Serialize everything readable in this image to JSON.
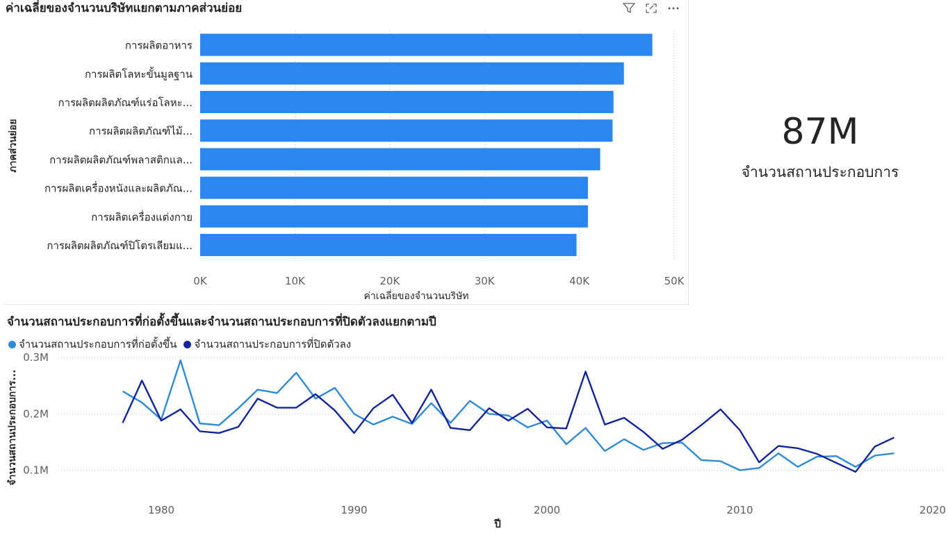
{
  "bar_visual": {
    "title": "ค่าเฉลี่ยของจำนวนบริษัทแยกตามภาคส่วนย่อย",
    "icons": [
      "filter-icon",
      "focus-mode-icon",
      "more-options-icon"
    ]
  },
  "card": {
    "value": "87M",
    "label": "จำนวนสถานประกอบการ"
  },
  "line_visual": {
    "title": "จำนวนสถานประกอบการที่ก่อตั้งขึ้นและจำนวนสถานประกอบการที่ปิดตัวลงแยกตามปี"
  },
  "colors": {
    "bar": "#2a87f0",
    "series_opened": "#2e8ad8",
    "series_closed": "#12239e",
    "grid": "#c8c6c4",
    "axis_text": "#605e5c"
  },
  "chart_data": [
    {
      "type": "bar",
      "orientation": "horizontal",
      "title": "ค่าเฉลี่ยของจำนวนบริษัทแยกตามภาคส่วนย่อย",
      "xlabel": "ค่าเฉลี่ยของจำนวนบริษัท",
      "ylabel": "ภาคส่วนย่อย",
      "categories": [
        "การผลิตอาหาร",
        "การผลิตโลหะขั้นมูลฐาน",
        "การผลิตผลิตภัณฑ์แร่อโลหะ...",
        "การผลิตผลิตภัณฑ์ไม้...",
        "การผลิตผลิตภัณฑ์พลาสติกแล...",
        "การผลิตเครื่องหนังและผลิตภัณ...",
        "การผลิตเครื่องแต่งกาย",
        "การผลิตผลิตภัณฑ์ปิโตรเลียมแ..."
      ],
      "values": [
        47700,
        44700,
        43600,
        43500,
        42200,
        40900,
        40900,
        39700
      ],
      "xlim": [
        0,
        50000
      ],
      "xticks": [
        "0K",
        "10K",
        "20K",
        "30K",
        "40K",
        "50K"
      ],
      "grid": true
    },
    {
      "type": "line",
      "title": "จำนวนสถานประกอบการที่ก่อตั้งขึ้นและจำนวนสถานประกอบการที่ปิดตัวลงแยกตามปี",
      "xlabel": "ปี",
      "ylabel": "จำนวนสถานประกอบการ...",
      "x": [
        1978,
        1979,
        1980,
        1981,
        1982,
        1983,
        1984,
        1985,
        1986,
        1987,
        1988,
        1989,
        1990,
        1991,
        1992,
        1993,
        1994,
        1995,
        1996,
        1997,
        1998,
        1999,
        2000,
        2001,
        2002,
        2003,
        2004,
        2005,
        2006,
        2007,
        2008,
        2009,
        2010,
        2011,
        2012,
        2013,
        2014,
        2015,
        2016,
        2017,
        2018
      ],
      "series": [
        {
          "name": "จำนวนสถานประกอบการที่ก่อตั้งขึ้น",
          "values": [
            0.24,
            0.22,
            0.19,
            0.295,
            0.183,
            0.18,
            0.21,
            0.243,
            0.237,
            0.273,
            0.227,
            0.246,
            0.2,
            0.181,
            0.195,
            0.182,
            0.219,
            0.184,
            0.223,
            0.2,
            0.197,
            0.176,
            0.188,
            0.146,
            0.175,
            0.134,
            0.155,
            0.136,
            0.148,
            0.149,
            0.118,
            0.116,
            0.1,
            0.104,
            0.13,
            0.106,
            0.124,
            0.125,
            0.106,
            0.126,
            0.13
          ]
        },
        {
          "name": "จำนวนสถานประกอบการที่ปิดตัวลง",
          "values": [
            0.184,
            0.259,
            0.188,
            0.208,
            0.169,
            0.166,
            0.177,
            0.227,
            0.211,
            0.211,
            0.235,
            0.206,
            0.166,
            0.21,
            0.234,
            0.184,
            0.243,
            0.175,
            0.171,
            0.21,
            0.188,
            0.209,
            0.176,
            0.174,
            0.275,
            0.181,
            0.193,
            0.168,
            0.138,
            0.154,
            0.18,
            0.208,
            0.171,
            0.114,
            0.143,
            0.139,
            0.129,
            0.113,
            0.097,
            0.142,
            0.158
          ]
        }
      ],
      "ylim": [
        0.06,
        0.31
      ],
      "yticks": [
        "0.1M",
        "0.2M",
        "0.3M"
      ],
      "xticks": [
        "1980",
        "1990",
        "2000",
        "2010",
        "2020"
      ],
      "legend_position": "top-left",
      "grid": true
    }
  ]
}
